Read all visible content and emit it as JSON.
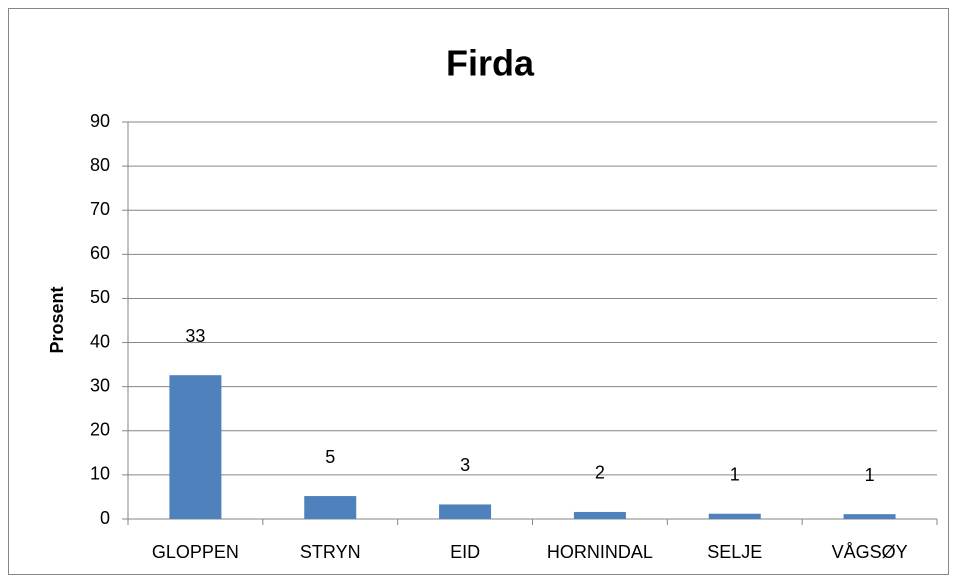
{
  "chart_data": {
    "type": "bar",
    "title": "Firda",
    "y_label": "Prosent",
    "categories": [
      "GLOPPEN",
      "STRYN",
      "EID",
      "HORNINDAL",
      "SELJE",
      "VÅGSØY"
    ],
    "values": [
      32.6,
      5.2,
      3.3,
      1.6,
      1.2,
      1.1
    ],
    "value_labels": [
      "33",
      "5",
      "3",
      "2",
      "1",
      "1"
    ],
    "color": "#4f81bd",
    "ylim": [
      0,
      90
    ],
    "yticks": [
      0,
      10,
      20,
      30,
      40,
      50,
      60,
      70,
      80,
      90
    ],
    "grid": true
  }
}
